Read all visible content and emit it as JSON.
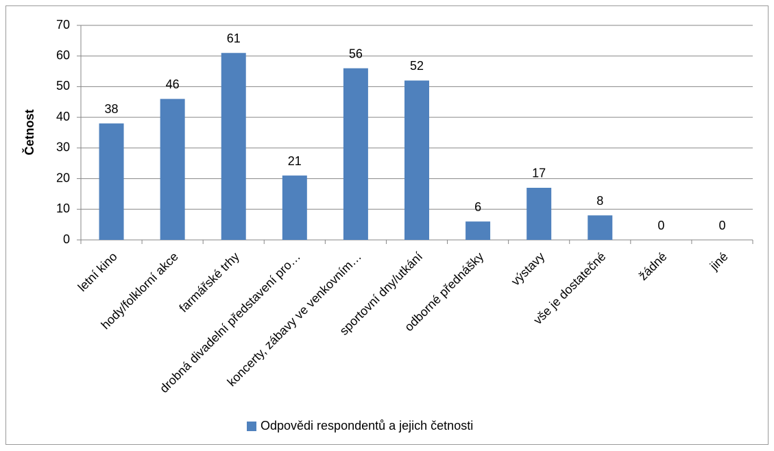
{
  "chart_data": {
    "type": "bar",
    "y_label": "Četnost",
    "categories": [
      "letní kino",
      "hody/folklorní akce",
      "farmářské trhy",
      "drobná divadelní představení pro…",
      "koncerty, zábavy ve venkovním…",
      "sportovní dny/utkání",
      "odborné přednášky",
      "výstavy",
      "vše je dostatečné",
      "žádné",
      "jiné"
    ],
    "series": [
      {
        "name": "Odpovědi respondentů a jejich četnosti",
        "color": "#4f81bd",
        "values": [
          38,
          46,
          61,
          21,
          56,
          52,
          6,
          17,
          8,
          0,
          0
        ]
      }
    ],
    "ylim": [
      0,
      70
    ],
    "yticks": [
      0,
      10,
      20,
      30,
      40,
      50,
      60,
      70
    ],
    "grid": true,
    "legend": "bottom"
  }
}
